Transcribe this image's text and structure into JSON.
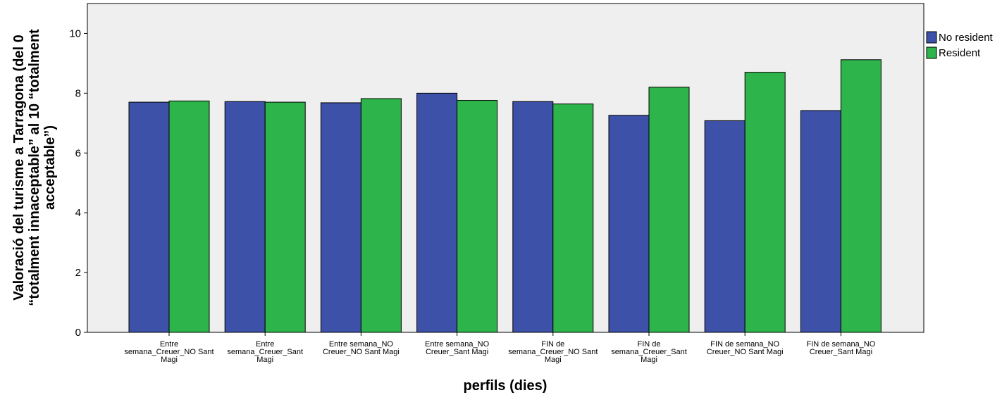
{
  "chart_data": {
    "type": "bar",
    "categories": [
      [
        "Entre",
        "semana_Creuer_NO Sant",
        "Magi"
      ],
      [
        "Entre",
        "semana_Creuer_Sant",
        "Magi"
      ],
      [
        "Entre semana_NO",
        "Creuer_NO Sant Magi"
      ],
      [
        "Entre semana_NO",
        "Creuer_Sant Magi"
      ],
      [
        "FIN de",
        "semana_Creuer_NO Sant",
        "Magi"
      ],
      [
        "FIN de",
        "semana_Creuer_Sant",
        "Magi"
      ],
      [
        "FIN de semana_NO",
        "Creuer_NO Sant Magi"
      ],
      [
        "FIN de semana_NO",
        "Creuer_Sant Magi"
      ]
    ],
    "series": [
      {
        "name": "No resident",
        "color": "#3d51a8",
        "values": [
          7.7,
          7.72,
          7.68,
          8.0,
          7.72,
          7.26,
          7.08,
          7.42
        ]
      },
      {
        "name": "Resident",
        "color": "#2db44a",
        "values": [
          7.74,
          7.7,
          7.82,
          7.76,
          7.64,
          8.2,
          8.7,
          9.12
        ]
      }
    ],
    "xlabel": "perfils (dies)",
    "ylabel": [
      "Valoració del turisme a Tarragona (del 0",
      "“totalment innaceptable” al 10 “totalment",
      "acceptable”)"
    ],
    "ylim": [
      0,
      11
    ],
    "yticks": [
      0,
      2,
      4,
      6,
      8,
      10
    ],
    "grid": false,
    "legend_position": "top-right",
    "plot_background": "#efefef"
  }
}
